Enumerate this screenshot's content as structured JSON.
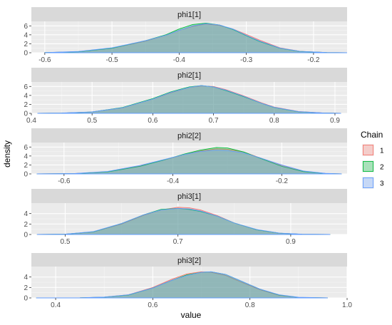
{
  "chart_data": {
    "type": "area",
    "kind": "faceted density plot",
    "xlabel": "value",
    "ylabel": "density",
    "facet_scales": "free",
    "grid": true,
    "legend": {
      "title": "Chain",
      "placement": "right",
      "entries": [
        {
          "label": "1",
          "color": "#F8766D"
        },
        {
          "label": "2",
          "color": "#00BA38"
        },
        {
          "label": "3",
          "color": "#619CFF"
        }
      ]
    },
    "panels": [
      {
        "name": "phi1[1]",
        "xlim": [
          -0.62,
          -0.15
        ],
        "ylim": [
          0,
          7
        ],
        "xticks": [
          -0.6,
          -0.5,
          -0.4,
          -0.3,
          -0.2
        ],
        "xtick_labels": [
          "-0.6",
          "-0.5",
          "-0.4",
          "-0.3",
          "-0.2"
        ],
        "yticks": [
          0,
          2,
          4,
          6
        ],
        "series": [
          {
            "chain": "1",
            "x": [
              -0.6,
              -0.55,
              -0.5,
              -0.45,
              -0.42,
              -0.4,
              -0.38,
              -0.36,
              -0.34,
              -0.32,
              -0.3,
              -0.28,
              -0.25,
              -0.22,
              -0.18,
              -0.15
            ],
            "y": [
              0.02,
              0.25,
              1.0,
              2.6,
              3.9,
              5.0,
              5.9,
              6.4,
              6.1,
              5.3,
              4.1,
              2.8,
              1.1,
              0.3,
              0.05,
              0.0
            ]
          },
          {
            "chain": "2",
            "x": [
              -0.6,
              -0.55,
              -0.5,
              -0.45,
              -0.42,
              -0.4,
              -0.38,
              -0.36,
              -0.34,
              -0.32,
              -0.3,
              -0.28,
              -0.25,
              -0.22,
              -0.18,
              -0.15
            ],
            "y": [
              0.02,
              0.22,
              1.0,
              2.7,
              4.0,
              5.3,
              6.3,
              6.6,
              6.2,
              5.2,
              3.8,
              2.5,
              1.0,
              0.28,
              0.04,
              0.0
            ]
          },
          {
            "chain": "3",
            "x": [
              -0.6,
              -0.55,
              -0.5,
              -0.45,
              -0.42,
              -0.4,
              -0.38,
              -0.36,
              -0.34,
              -0.32,
              -0.3,
              -0.28,
              -0.25,
              -0.22,
              -0.18,
              -0.15
            ],
            "y": [
              0.03,
              0.28,
              1.1,
              2.7,
              3.9,
              5.0,
              6.0,
              6.5,
              6.2,
              5.3,
              3.9,
              2.6,
              1.05,
              0.3,
              0.05,
              0.0
            ]
          }
        ]
      },
      {
        "name": "phi2[1]",
        "xlim": [
          0.4,
          0.92
        ],
        "ylim": [
          0,
          7
        ],
        "xticks": [
          0.4,
          0.5,
          0.6,
          0.7,
          0.8,
          0.9
        ],
        "xtick_labels": [
          "0.4",
          "0.5",
          "0.6",
          "0.7",
          "0.8",
          "0.9"
        ],
        "yticks": [
          0,
          2,
          4,
          6
        ],
        "series": [
          {
            "chain": "1",
            "x": [
              0.41,
              0.45,
              0.5,
              0.55,
              0.6,
              0.63,
              0.66,
              0.68,
              0.7,
              0.72,
              0.75,
              0.78,
              0.8,
              0.84,
              0.88,
              0.91
            ],
            "y": [
              0.0,
              0.05,
              0.3,
              1.2,
              3.2,
              4.6,
              5.8,
              6.1,
              6.0,
              5.3,
              3.9,
              2.3,
              1.4,
              0.4,
              0.08,
              0.0
            ]
          },
          {
            "chain": "2",
            "x": [
              0.41,
              0.45,
              0.5,
              0.55,
              0.6,
              0.63,
              0.66,
              0.68,
              0.7,
              0.72,
              0.75,
              0.78,
              0.8,
              0.84,
              0.88,
              0.91
            ],
            "y": [
              0.0,
              0.04,
              0.3,
              1.3,
              3.3,
              4.8,
              5.9,
              6.2,
              5.9,
              5.1,
              3.7,
              2.2,
              1.3,
              0.35,
              0.07,
              0.0
            ]
          },
          {
            "chain": "3",
            "x": [
              0.41,
              0.45,
              0.5,
              0.55,
              0.6,
              0.63,
              0.66,
              0.68,
              0.7,
              0.72,
              0.75,
              0.78,
              0.8,
              0.84,
              0.88,
              0.91
            ],
            "y": [
              0.0,
              0.06,
              0.32,
              1.25,
              3.2,
              4.7,
              5.8,
              6.2,
              5.9,
              5.2,
              3.8,
              2.2,
              1.35,
              0.38,
              0.08,
              0.0
            ]
          }
        ]
      },
      {
        "name": "phi2[2]",
        "xlim": [
          -0.66,
          -0.08
        ],
        "ylim": [
          0,
          7
        ],
        "xticks": [
          -0.6,
          -0.4,
          -0.2
        ],
        "xtick_labels": [
          "-0.6",
          "-0.4",
          "-0.2"
        ],
        "yticks": [
          0,
          2,
          4,
          6
        ],
        "series": [
          {
            "chain": "1",
            "x": [
              -0.65,
              -0.58,
              -0.52,
              -0.46,
              -0.42,
              -0.38,
              -0.35,
              -0.32,
              -0.3,
              -0.27,
              -0.24,
              -0.2,
              -0.16,
              -0.12,
              -0.09
            ],
            "y": [
              0.0,
              0.08,
              0.5,
              1.8,
              3.0,
              4.3,
              5.1,
              5.6,
              5.5,
              4.9,
              3.6,
              1.9,
              0.6,
              0.1,
              0.0
            ]
          },
          {
            "chain": "2",
            "x": [
              -0.65,
              -0.58,
              -0.52,
              -0.46,
              -0.42,
              -0.38,
              -0.35,
              -0.32,
              -0.3,
              -0.27,
              -0.24,
              -0.2,
              -0.16,
              -0.12,
              -0.09
            ],
            "y": [
              0.0,
              0.07,
              0.45,
              1.7,
              3.0,
              4.4,
              5.3,
              5.9,
              5.8,
              4.9,
              3.5,
              1.7,
              0.5,
              0.08,
              0.0
            ]
          },
          {
            "chain": "3",
            "x": [
              -0.65,
              -0.58,
              -0.52,
              -0.46,
              -0.42,
              -0.38,
              -0.35,
              -0.32,
              -0.3,
              -0.27,
              -0.24,
              -0.2,
              -0.16,
              -0.12,
              -0.09
            ],
            "y": [
              0.0,
              0.09,
              0.55,
              1.9,
              3.1,
              4.3,
              5.0,
              5.3,
              5.2,
              4.7,
              3.6,
              2.0,
              0.65,
              0.12,
              0.0
            ]
          }
        ]
      },
      {
        "name": "phi3[1]",
        "xlim": [
          0.44,
          1.0
        ],
        "ylim": [
          0,
          6
        ],
        "xticks": [
          0.5,
          0.7,
          0.9
        ],
        "xtick_labels": [
          "0.5",
          "0.7",
          "0.9"
        ],
        "yticks": [
          0,
          2,
          4
        ],
        "series": [
          {
            "chain": "1",
            "x": [
              0.45,
              0.5,
              0.55,
              0.6,
              0.64,
              0.67,
              0.7,
              0.72,
              0.74,
              0.77,
              0.8,
              0.84,
              0.88,
              0.92,
              0.97
            ],
            "y": [
              0.0,
              0.05,
              0.5,
              2.0,
              3.7,
              4.7,
              5.2,
              5.1,
              4.7,
              3.6,
              2.2,
              0.9,
              0.25,
              0.04,
              0.0
            ]
          },
          {
            "chain": "2",
            "x": [
              0.45,
              0.5,
              0.55,
              0.6,
              0.64,
              0.67,
              0.7,
              0.72,
              0.74,
              0.77,
              0.8,
              0.84,
              0.88,
              0.92,
              0.97
            ],
            "y": [
              0.0,
              0.05,
              0.5,
              2.1,
              3.8,
              4.8,
              5.0,
              4.8,
              4.4,
              3.5,
              2.2,
              0.9,
              0.25,
              0.04,
              0.0
            ]
          },
          {
            "chain": "3",
            "x": [
              0.45,
              0.5,
              0.55,
              0.6,
              0.64,
              0.67,
              0.7,
              0.72,
              0.74,
              0.77,
              0.8,
              0.84,
              0.88,
              0.92,
              0.97
            ],
            "y": [
              0.0,
              0.06,
              0.55,
              2.1,
              3.8,
              4.7,
              5.0,
              4.9,
              4.5,
              3.5,
              2.2,
              0.95,
              0.27,
              0.05,
              0.0
            ]
          }
        ]
      },
      {
        "name": "phi3[2]",
        "xlim": [
          0.35,
          1.0
        ],
        "ylim": [
          0,
          6
        ],
        "xticks": [
          0.4,
          0.6,
          0.8,
          1.0
        ],
        "xtick_labels": [
          "0.4",
          "0.6",
          "0.8",
          "1.0"
        ],
        "yticks": [
          0,
          2,
          4
        ],
        "series": [
          {
            "chain": "1",
            "x": [
              0.36,
              0.45,
              0.5,
              0.55,
              0.6,
              0.64,
              0.67,
              0.7,
              0.72,
              0.75,
              0.78,
              0.82,
              0.86,
              0.9,
              0.96
            ],
            "y": [
              0.0,
              0.02,
              0.15,
              0.6,
              2.0,
              3.6,
              4.6,
              5.0,
              4.9,
              4.3,
              3.1,
              1.6,
              0.5,
              0.1,
              0.0
            ]
          },
          {
            "chain": "2",
            "x": [
              0.36,
              0.45,
              0.5,
              0.55,
              0.6,
              0.64,
              0.67,
              0.7,
              0.72,
              0.75,
              0.78,
              0.82,
              0.86,
              0.9,
              0.96
            ],
            "y": [
              0.0,
              0.02,
              0.14,
              0.55,
              1.9,
              3.4,
              4.4,
              4.9,
              5.0,
              4.5,
              3.3,
              1.7,
              0.55,
              0.1,
              0.0
            ]
          },
          {
            "chain": "3",
            "x": [
              0.36,
              0.45,
              0.5,
              0.55,
              0.6,
              0.64,
              0.67,
              0.7,
              0.72,
              0.75,
              0.78,
              0.82,
              0.86,
              0.9,
              0.96
            ],
            "y": [
              0.0,
              0.03,
              0.16,
              0.6,
              1.9,
              3.4,
              4.3,
              4.9,
              5.0,
              4.5,
              3.3,
              1.7,
              0.6,
              0.12,
              0.0
            ]
          }
        ]
      }
    ]
  }
}
